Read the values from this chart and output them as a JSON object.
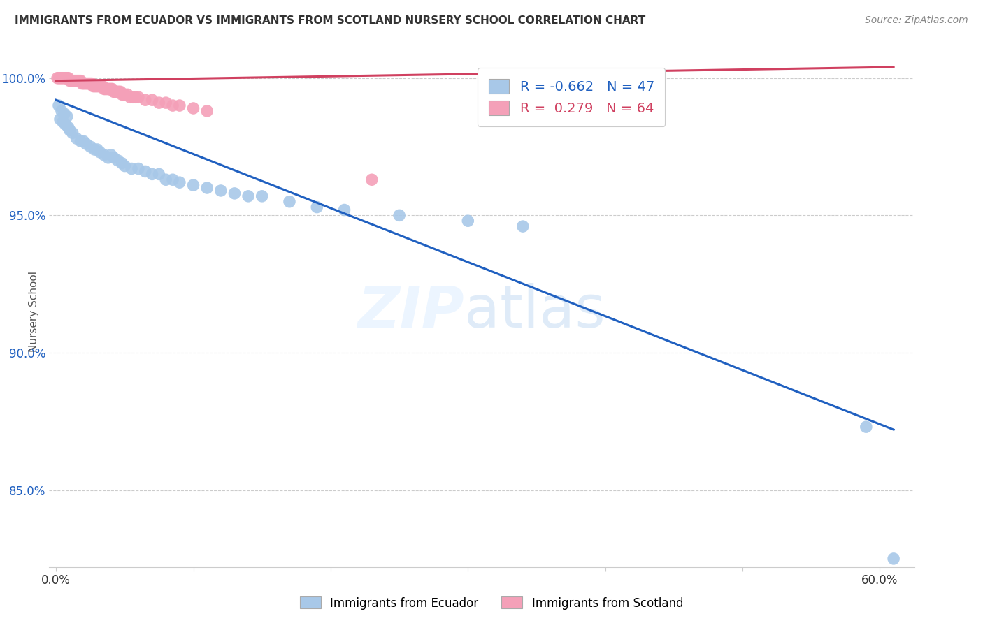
{
  "title": "IMMIGRANTS FROM ECUADOR VS IMMIGRANTS FROM SCOTLAND NURSERY SCHOOL CORRELATION CHART",
  "source": "Source: ZipAtlas.com",
  "ylabel": "Nursery School",
  "xlabel_ticks": [
    "0.0%",
    "",
    "",
    "",
    "",
    "",
    "60.0%"
  ],
  "xlabel_vals": [
    0.0,
    0.1,
    0.2,
    0.3,
    0.4,
    0.5,
    0.6
  ],
  "ylim": [
    0.822,
    1.008
  ],
  "xlim": [
    -0.005,
    0.625
  ],
  "legend_blue_R": "-0.662",
  "legend_blue_N": "47",
  "legend_pink_R": " 0.279",
  "legend_pink_N": "64",
  "blue_color": "#a8c8e8",
  "pink_color": "#f4a0b8",
  "blue_line_color": "#2060c0",
  "pink_line_color": "#d04060",
  "blue_scatter_x": [
    0.002,
    0.003,
    0.004,
    0.005,
    0.006,
    0.007,
    0.008,
    0.009,
    0.01,
    0.012,
    0.015,
    0.018,
    0.02,
    0.022,
    0.025,
    0.028,
    0.03,
    0.032,
    0.035,
    0.038,
    0.04,
    0.042,
    0.045,
    0.048,
    0.05,
    0.055,
    0.06,
    0.065,
    0.07,
    0.075,
    0.08,
    0.085,
    0.09,
    0.1,
    0.11,
    0.12,
    0.13,
    0.14,
    0.15,
    0.17,
    0.19,
    0.21,
    0.25,
    0.3,
    0.34,
    0.59,
    0.61
  ],
  "blue_scatter_y": [
    0.99,
    0.985,
    0.988,
    0.984,
    0.987,
    0.983,
    0.986,
    0.982,
    0.981,
    0.98,
    0.978,
    0.977,
    0.977,
    0.976,
    0.975,
    0.974,
    0.974,
    0.973,
    0.972,
    0.971,
    0.972,
    0.971,
    0.97,
    0.969,
    0.968,
    0.967,
    0.967,
    0.966,
    0.965,
    0.965,
    0.963,
    0.963,
    0.962,
    0.961,
    0.96,
    0.959,
    0.958,
    0.957,
    0.957,
    0.955,
    0.953,
    0.952,
    0.95,
    0.948,
    0.946,
    0.873,
    0.825
  ],
  "pink_scatter_x": [
    0.001,
    0.002,
    0.003,
    0.004,
    0.005,
    0.006,
    0.007,
    0.008,
    0.009,
    0.01,
    0.011,
    0.012,
    0.013,
    0.014,
    0.015,
    0.016,
    0.017,
    0.018,
    0.019,
    0.02,
    0.021,
    0.022,
    0.023,
    0.024,
    0.025,
    0.026,
    0.027,
    0.028,
    0.029,
    0.03,
    0.031,
    0.032,
    0.033,
    0.034,
    0.035,
    0.036,
    0.037,
    0.038,
    0.039,
    0.04,
    0.041,
    0.042,
    0.043,
    0.044,
    0.045,
    0.046,
    0.047,
    0.048,
    0.049,
    0.05,
    0.052,
    0.054,
    0.056,
    0.058,
    0.06,
    0.065,
    0.07,
    0.075,
    0.08,
    0.085,
    0.09,
    0.1,
    0.11,
    0.23
  ],
  "pink_scatter_y": [
    1.0,
    1.0,
    1.0,
    1.0,
    1.0,
    1.0,
    1.0,
    1.0,
    1.0,
    0.999,
    0.999,
    0.999,
    0.999,
    0.999,
    0.999,
    0.999,
    0.999,
    0.999,
    0.998,
    0.998,
    0.998,
    0.998,
    0.998,
    0.998,
    0.998,
    0.998,
    0.997,
    0.997,
    0.997,
    0.997,
    0.997,
    0.997,
    0.997,
    0.997,
    0.996,
    0.996,
    0.996,
    0.996,
    0.996,
    0.996,
    0.996,
    0.995,
    0.995,
    0.995,
    0.995,
    0.995,
    0.995,
    0.994,
    0.994,
    0.994,
    0.994,
    0.993,
    0.993,
    0.993,
    0.993,
    0.992,
    0.992,
    0.991,
    0.991,
    0.99,
    0.99,
    0.989,
    0.988,
    0.963
  ],
  "blue_trend_x": [
    0.0,
    0.61
  ],
  "blue_trend_y": [
    0.992,
    0.872
  ],
  "pink_trend_x": [
    0.0,
    0.61
  ],
  "pink_trend_y": [
    0.999,
    1.004
  ],
  "yticks": [
    0.85,
    0.9,
    0.95,
    1.0
  ],
  "ytick_labels": [
    "85.0%",
    "90.0%",
    "95.0%",
    "100.0%"
  ],
  "grid_color": "#cccccc",
  "background_color": "#ffffff",
  "tick_color": "#2060c0"
}
